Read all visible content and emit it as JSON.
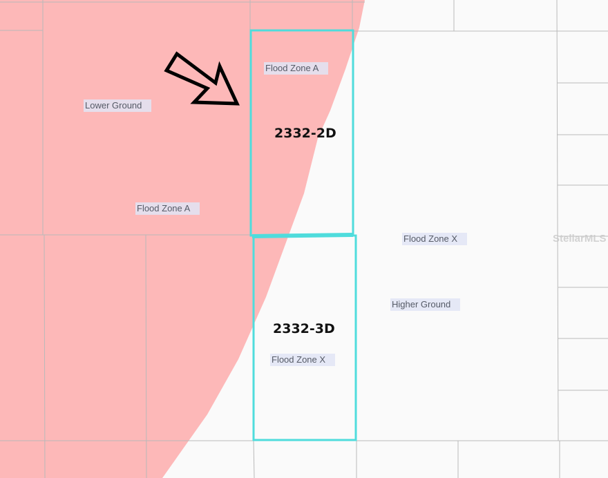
{
  "colors": {
    "flood_zone_a": "#fdb8b8",
    "flood_zone_x": "#fafafa",
    "parcel_outline": "#4fdcdc",
    "lot_lines": "#c4c4c4",
    "arrow": "#000000"
  },
  "labels": {
    "lower_ground": "Lower Ground",
    "flood_zone_a_left": "Flood Zone A",
    "flood_zone_a_parcel": "Flood Zone A",
    "flood_zone_x_right": "Flood Zone X",
    "higher_ground": "Higher Ground",
    "flood_zone_x_parcel": "Flood Zone X"
  },
  "parcels": [
    {
      "id": "2332-2D"
    },
    {
      "id": "2332-3D"
    }
  ],
  "arrow_icon": "hollow-arrow-down-right",
  "watermark": "StellarMLS"
}
